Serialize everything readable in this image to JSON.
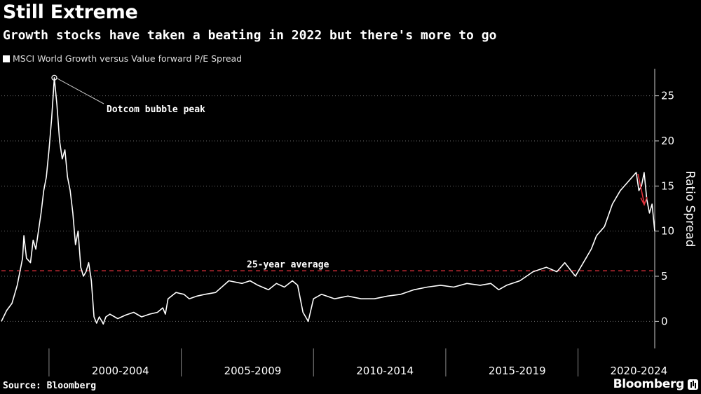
{
  "chart_data": {
    "type": "line",
    "title": "Still Extreme",
    "subtitle": "Growth stocks have taken a beating in 2022 but there's more to go",
    "source": "Source: Bloomberg",
    "brand": "Bloomberg",
    "ylabel": "Ratio Spread",
    "ylim": [
      -3,
      28
    ],
    "yticks": [
      0,
      5,
      10,
      15,
      20,
      25
    ],
    "grid": true,
    "legend_position": "top-left",
    "x_range": [
      1997.9,
      2022.6
    ],
    "x_period_labels": [
      {
        "label": "2000-2004",
        "center": 2002.4
      },
      {
        "label": "2005-2009",
        "center": 2007.4
      },
      {
        "label": "2010-2014",
        "center": 2012.4
      },
      {
        "label": "2015-2019",
        "center": 2017.4
      },
      {
        "label": "2020-2024",
        "center": 2022.0
      }
    ],
    "x_separators": [
      1999.7,
      2004.7,
      2009.7,
      2014.7,
      2019.7
    ],
    "series": [
      {
        "name": "MSCI World Growth versus Value forward P/E Spread",
        "color": "#ffffff",
        "x": [
          1997.9,
          1998.1,
          1998.3,
          1998.5,
          1998.7,
          1998.75,
          1998.85,
          1999.0,
          1999.1,
          1999.2,
          1999.3,
          1999.4,
          1999.5,
          1999.6,
          1999.7,
          1999.8,
          1999.9,
          2000.0,
          2000.1,
          2000.2,
          2000.3,
          2000.4,
          2000.5,
          2000.6,
          2000.7,
          2000.8,
          2000.9,
          2001.0,
          2001.1,
          2001.2,
          2001.3,
          2001.4,
          2001.5,
          2001.6,
          2001.7,
          2001.75,
          2001.85,
          2002.0,
          2002.3,
          2002.6,
          2002.9,
          2003.2,
          2003.5,
          2003.8,
          2004.0,
          2004.1,
          2004.2,
          2004.5,
          2004.8,
          2005.0,
          2005.3,
          2005.6,
          2006.0,
          2006.5,
          2007.0,
          2007.3,
          2007.6,
          2008.0,
          2008.3,
          2008.6,
          2008.9,
          2009.1,
          2009.2,
          2009.3,
          2009.5,
          2009.7,
          2010.0,
          2010.5,
          2011.0,
          2011.5,
          2012.0,
          2012.5,
          2013.0,
          2013.5,
          2014.0,
          2014.5,
          2015.0,
          2015.5,
          2016.0,
          2016.4,
          2016.7,
          2017.0,
          2017.5,
          2018.0,
          2018.5,
          2018.9,
          2019.2,
          2019.6,
          2020.0,
          2020.2,
          2020.4,
          2020.7,
          2021.0,
          2021.3,
          2021.6,
          2021.9,
          2022.0,
          2022.1,
          2022.2,
          2022.3,
          2022.4,
          2022.5,
          2022.6
        ],
        "y": [
          0.0,
          1.2,
          2.0,
          4.0,
          7.0,
          9.5,
          7.0,
          6.5,
          9.0,
          8.0,
          10.0,
          12.0,
          14.5,
          16.0,
          19.0,
          22.5,
          27.0,
          24.0,
          20.0,
          18.0,
          19.0,
          16.0,
          14.5,
          12.0,
          8.5,
          10.0,
          6.0,
          5.0,
          5.5,
          6.5,
          4.5,
          0.5,
          -0.2,
          0.5,
          0.0,
          -0.3,
          0.5,
          0.8,
          0.3,
          0.7,
          1.0,
          0.5,
          0.8,
          1.0,
          1.5,
          0.8,
          2.5,
          3.2,
          3.0,
          2.5,
          2.8,
          3.0,
          3.2,
          4.5,
          4.2,
          4.5,
          4.0,
          3.5,
          4.2,
          3.8,
          4.5,
          4.0,
          2.5,
          1.0,
          0.0,
          2.5,
          3.0,
          2.5,
          2.8,
          2.5,
          2.5,
          2.8,
          3.0,
          3.5,
          3.8,
          4.0,
          3.8,
          4.2,
          4.0,
          4.2,
          3.5,
          4.0,
          4.5,
          5.5,
          6.0,
          5.5,
          6.5,
          5.0,
          7.0,
          8.0,
          9.5,
          10.5,
          13.0,
          14.5,
          15.5,
          16.5,
          14.5,
          15.0,
          16.5,
          13.5,
          12.0,
          13.0,
          10.0
        ]
      }
    ],
    "annotations": [
      {
        "text": "Dotcom bubble peak",
        "x": 1999.9,
        "y": 27.0
      },
      {
        "text": "25-year average",
        "value": 5.6,
        "color": "#e0303a"
      }
    ],
    "arrow_color": "#e0303a"
  }
}
